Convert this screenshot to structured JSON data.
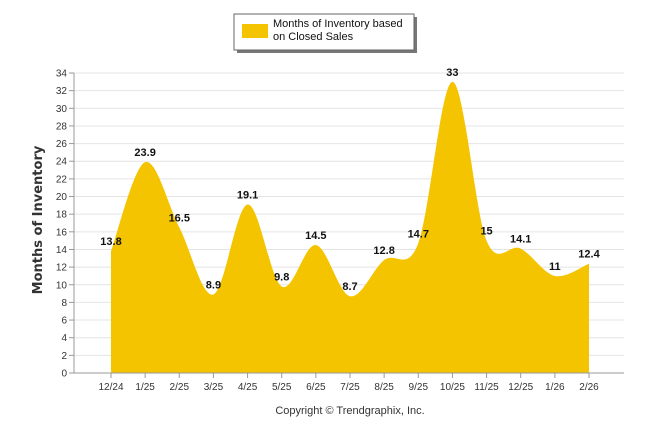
{
  "chart_data": {
    "type": "area",
    "ylabel": "Months of Inventory",
    "xlabel": "",
    "ylim": [
      0,
      34
    ],
    "yticks": [
      0,
      2,
      4,
      6,
      8,
      10,
      12,
      14,
      16,
      18,
      20,
      22,
      24,
      26,
      28,
      30,
      32,
      34
    ],
    "grid": true,
    "legend_position": "top-center",
    "categories": [
      "12/24",
      "1/25",
      "2/25",
      "3/25",
      "4/25",
      "5/25",
      "6/25",
      "7/25",
      "8/25",
      "9/25",
      "10/25",
      "11/25",
      "12/25",
      "1/26",
      "2/26"
    ],
    "series": [
      {
        "name": "Months of Inventory based on Closed Sales",
        "legend_lines": [
          "Months of Inventory based",
          "on Closed Sales"
        ],
        "color": "#F5C400",
        "values": [
          13.8,
          23.9,
          16.5,
          8.9,
          19.1,
          9.8,
          14.5,
          8.7,
          12.8,
          14.7,
          33,
          15,
          14.1,
          11,
          12.4
        ],
        "labels": [
          "13.8",
          "23.9",
          "16.5",
          "8.9",
          "19.1",
          "9.8",
          "14.5",
          "8.7",
          "12.8",
          "14.7",
          "33",
          "15",
          "14.1",
          "11",
          "12.4"
        ]
      }
    ]
  },
  "footer": {
    "copyright": "Copyright © Trendgraphix, Inc."
  }
}
